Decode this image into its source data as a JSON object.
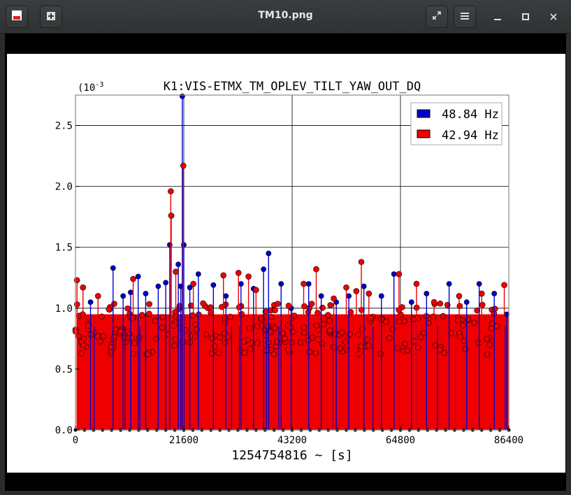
{
  "window": {
    "title": "TM10.png",
    "buttons": {
      "new_tab": "new-tab",
      "fullscreen": "fullscreen",
      "menu": "menu",
      "minimize": "minimize",
      "maximize": "maximize",
      "close": "close"
    }
  },
  "chart_data": {
    "type": "scatter",
    "title": "K1:VIS-ETMX_TM_OPLEV_TILT_YAW_OUT_DQ",
    "xlabel": "1254754816 ~ [s]",
    "ylabel": "",
    "y_exponent_label": "(10",
    "y_exponent_sup": "-3",
    "xlim": [
      0,
      86400
    ],
    "ylim": [
      0,
      2.75
    ],
    "xticks": [
      0,
      21600,
      43200,
      64800,
      86400
    ],
    "xtick_labels": [
      "0",
      "21600",
      "43200",
      "64800",
      "86400"
    ],
    "yticks": [
      0,
      0.5,
      1.0,
      1.5,
      2.0,
      2.5
    ],
    "ytick_labels": [
      "0.0",
      "0.5",
      "1.0",
      "1.5",
      "2.0",
      "2.5"
    ],
    "grid": true,
    "legend_position": "top-right",
    "series": [
      {
        "name": "48.84 Hz",
        "color": "#0000cc",
        "points": [
          [
            3000,
            1.05
          ],
          [
            7500,
            1.33
          ],
          [
            9500,
            1.1
          ],
          [
            12500,
            1.26
          ],
          [
            11000,
            1.13
          ],
          [
            14000,
            1.12
          ],
          [
            16500,
            1.18
          ],
          [
            18000,
            1.21
          ],
          [
            18800,
            1.52
          ],
          [
            20500,
            1.36
          ],
          [
            21000,
            1.18
          ],
          [
            21300,
            2.74
          ],
          [
            21600,
            1.52
          ],
          [
            22800,
            1.17
          ],
          [
            24500,
            1.28
          ],
          [
            27500,
            1.19
          ],
          [
            30000,
            1.1
          ],
          [
            33000,
            1.2
          ],
          [
            35500,
            1.16
          ],
          [
            37500,
            1.32
          ],
          [
            38500,
            1.45
          ],
          [
            41000,
            1.2
          ],
          [
            43000,
            1.0
          ],
          [
            46500,
            1.2
          ],
          [
            49000,
            1.1
          ],
          [
            52000,
            1.05
          ],
          [
            54500,
            1.1
          ],
          [
            57500,
            1.18
          ],
          [
            61000,
            1.1
          ],
          [
            63500,
            1.28
          ],
          [
            67000,
            1.05
          ],
          [
            70000,
            1.12
          ],
          [
            74500,
            1.2
          ],
          [
            78000,
            1.05
          ],
          [
            80500,
            1.2
          ],
          [
            83500,
            1.12
          ],
          [
            86000,
            0.95
          ]
        ]
      },
      {
        "name": "42.94 Hz",
        "color": "#ee0000",
        "points": [
          [
            300,
            1.23
          ],
          [
            1500,
            1.17
          ],
          [
            4500,
            1.1
          ],
          [
            11500,
            1.24
          ],
          [
            19000,
            1.96
          ],
          [
            19100,
            1.76
          ],
          [
            20000,
            1.3
          ],
          [
            21500,
            2.17
          ],
          [
            23500,
            1.2
          ],
          [
            29500,
            1.27
          ],
          [
            32500,
            1.29
          ],
          [
            34500,
            1.26
          ],
          [
            36000,
            1.15
          ],
          [
            42500,
            1.02
          ],
          [
            45500,
            1.2
          ],
          [
            48000,
            1.32
          ],
          [
            51500,
            1.08
          ],
          [
            54000,
            1.17
          ],
          [
            56000,
            1.14
          ],
          [
            57000,
            1.38
          ],
          [
            58500,
            1.12
          ],
          [
            64500,
            1.28
          ],
          [
            68000,
            1.2
          ],
          [
            71500,
            1.05
          ],
          [
            76500,
            1.1
          ],
          [
            81000,
            1.12
          ],
          [
            85500,
            1.19
          ]
        ]
      }
    ]
  }
}
